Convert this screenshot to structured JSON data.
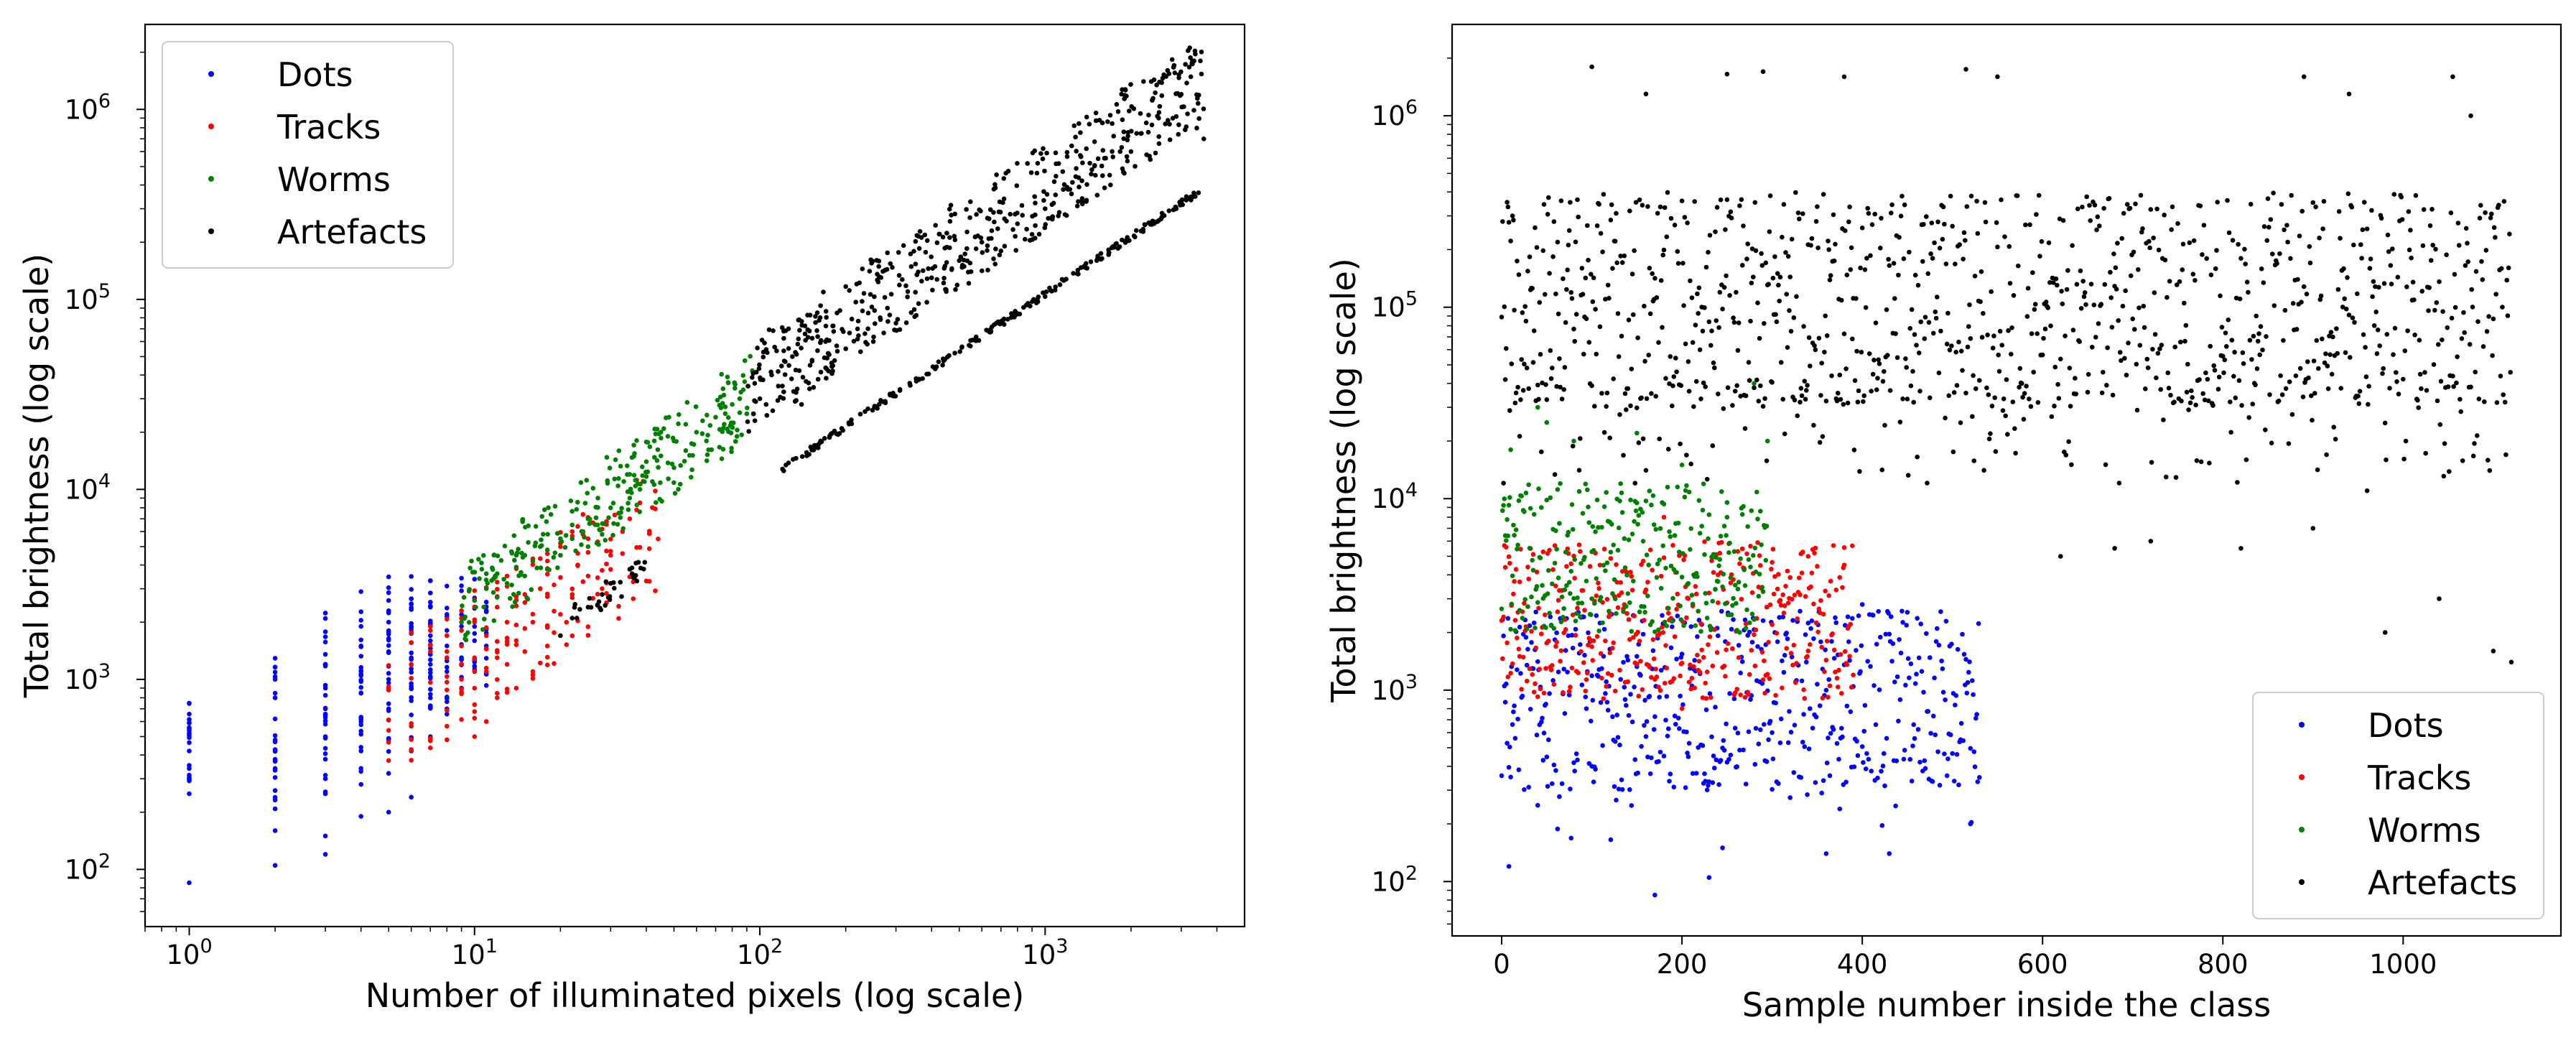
{
  "chart_data": [
    {
      "type": "scatter",
      "title": "",
      "xlabel": "Number of illuminated pixels (log scale)",
      "ylabel": "Total brightness (log scale)",
      "xscale": "log",
      "yscale": "log",
      "xlim": [
        0.7,
        5000
      ],
      "ylim": [
        50,
        2800000
      ],
      "xticks": [
        {
          "value": 1,
          "base": "10",
          "exp": "0"
        },
        {
          "value": 10,
          "base": "10",
          "exp": "1"
        },
        {
          "value": 100,
          "base": "10",
          "exp": "2"
        },
        {
          "value": 1000,
          "base": "10",
          "exp": "3"
        }
      ],
      "yticks": [
        {
          "value": 100,
          "base": "10",
          "exp": "2"
        },
        {
          "value": 1000,
          "base": "10",
          "exp": "3"
        },
        {
          "value": 10000,
          "base": "10",
          "exp": "4"
        },
        {
          "value": 100000,
          "base": "10",
          "exp": "5"
        },
        {
          "value": 1000000,
          "base": "10",
          "exp": "6"
        }
      ],
      "legend_position": "upper-left",
      "series": [
        {
          "name": "Dots",
          "color": "#0000ff",
          "points": [
            [
              1,
              85
            ],
            [
              1,
              250
            ],
            [
              1,
              300
            ],
            [
              1,
              420
            ],
            [
              1,
              550
            ],
            [
              1,
              750
            ],
            [
              2,
              105
            ],
            [
              2,
              160
            ],
            [
              2,
              260
            ],
            [
              2,
              340
            ],
            [
              2,
              480
            ],
            [
              2,
              620
            ],
            [
              2,
              800
            ],
            [
              2,
              1000
            ],
            [
              3,
              120
            ],
            [
              3,
              150
            ],
            [
              3,
              250
            ],
            [
              3,
              380
            ],
            [
              3,
              500
            ],
            [
              3,
              700
            ],
            [
              3,
              900
            ],
            [
              3,
              1200
            ],
            [
              4,
              190
            ],
            [
              4,
              280
            ],
            [
              4,
              420
            ],
            [
              4,
              600
            ],
            [
              4,
              850
            ],
            [
              4,
              1100
            ],
            [
              4,
              1500
            ],
            [
              4,
              1900
            ],
            [
              5,
              200
            ],
            [
              5,
              320
            ],
            [
              5,
              480
            ],
            [
              5,
              700
            ],
            [
              5,
              1000
            ],
            [
              5,
              1400
            ],
            [
              5,
              2000
            ],
            [
              6,
              240
            ],
            [
              6,
              420
            ],
            [
              6,
              650
            ],
            [
              6,
              950
            ],
            [
              6,
              1300
            ],
            [
              6,
              1900
            ],
            [
              6,
              2500
            ],
            [
              7,
              500
            ],
            [
              7,
              800
            ],
            [
              7,
              1200
            ],
            [
              7,
              1700
            ],
            [
              7,
              2400
            ],
            [
              7,
              3300
            ],
            [
              8,
              700
            ],
            [
              8,
              1100
            ],
            [
              8,
              1500
            ],
            [
              8,
              2200
            ],
            [
              8,
              3100
            ],
            [
              9,
              900
            ],
            [
              9,
              1300
            ],
            [
              9,
              1900
            ],
            [
              10,
              1100
            ],
            [
              10,
              1600
            ],
            [
              11,
              1500
            ]
          ]
        },
        {
          "name": "Tracks",
          "color": "#ff0000",
          "points": [
            [
              5,
              900
            ],
            [
              6,
              1200
            ],
            [
              7,
              1400
            ],
            [
              7,
              1900
            ],
            [
              8,
              1300
            ],
            [
              8,
              1700
            ],
            [
              9,
              1000
            ],
            [
              9,
              1500
            ],
            [
              9,
              2300
            ],
            [
              10,
              500
            ],
            [
              10,
              900
            ],
            [
              10,
              1300
            ],
            [
              10,
              2000
            ],
            [
              11,
              600
            ],
            [
              11,
              1100
            ],
            [
              11,
              1700
            ],
            [
              12,
              800
            ],
            [
              12,
              1300
            ],
            [
              12,
              2400
            ],
            [
              13,
              1200
            ],
            [
              13,
              2000
            ],
            [
              13,
              3500
            ],
            [
              14,
              900
            ],
            [
              14,
              1600
            ],
            [
              15,
              1400
            ],
            [
              15,
              2800
            ],
            [
              16,
              1100
            ],
            [
              16,
              2000
            ],
            [
              17,
              3000
            ],
            [
              18,
              1500
            ],
            [
              18,
              4200
            ],
            [
              20,
              2200
            ],
            [
              20,
              5000
            ],
            [
              22,
              2800
            ],
            [
              23,
              4000
            ],
            [
              25,
              3500
            ],
            [
              25,
              5500
            ],
            [
              28,
              3000
            ],
            [
              30,
              4500
            ],
            [
              33,
              6000
            ],
            [
              35,
              7000
            ]
          ]
        },
        {
          "name": "Worms",
          "color": "#008000",
          "points": [
            [
              9,
              2000
            ],
            [
              10,
              2600
            ],
            [
              11,
              3000
            ],
            [
              11,
              3600
            ],
            [
              12,
              2700
            ],
            [
              12,
              3600
            ],
            [
              13,
              3200
            ],
            [
              14,
              3900
            ],
            [
              14,
              4500
            ],
            [
              15,
              3500
            ],
            [
              15,
              4500
            ],
            [
              16,
              4200
            ],
            [
              17,
              5000
            ],
            [
              18,
              3800
            ],
            [
              18,
              4800
            ],
            [
              20,
              4500
            ],
            [
              20,
              5500
            ],
            [
              22,
              5500
            ],
            [
              22,
              6500
            ],
            [
              24,
              6000
            ],
            [
              25,
              5000
            ],
            [
              25,
              7000
            ],
            [
              27,
              6500
            ],
            [
              28,
              5800
            ],
            [
              30,
              8000
            ],
            [
              32,
              7500
            ],
            [
              35,
              9000
            ],
            [
              35,
              12000
            ],
            [
              38,
              10000
            ],
            [
              40,
              14000
            ],
            [
              42,
              11000
            ],
            [
              45,
              15000
            ],
            [
              45,
              20000
            ],
            [
              50,
              13000
            ],
            [
              50,
              18000
            ],
            [
              55,
              16000
            ],
            [
              55,
              22000
            ],
            [
              60,
              20000
            ],
            [
              65,
              18000
            ],
            [
              70,
              24000
            ],
            [
              75,
              22000
            ],
            [
              80,
              28000
            ],
            [
              85,
              30000
            ],
            [
              90,
              25000
            ]
          ]
        },
        {
          "name": "Artefacts",
          "color": "#000000",
          "points": [
            [
              20,
              1700
            ],
            [
              22,
              2100
            ],
            [
              25,
              2400
            ],
            [
              28,
              2800
            ],
            [
              30,
              3200
            ],
            [
              35,
              3800
            ],
            [
              95,
              25000
            ],
            [
              100,
              30000
            ],
            [
              110,
              40000
            ],
            [
              120,
              35000
            ],
            [
              130,
              50000
            ],
            [
              140,
              28000
            ],
            [
              150,
              45000
            ],
            [
              160,
              38000
            ],
            [
              170,
              60000
            ],
            [
              180,
              42000
            ],
            [
              200,
              55000
            ],
            [
              220,
              70000
            ],
            [
              250,
              60000
            ],
            [
              280,
              90000
            ],
            [
              300,
              75000
            ],
            [
              330,
              110000
            ],
            [
              360,
              95000
            ],
            [
              400,
              130000
            ],
            [
              450,
              110000
            ],
            [
              500,
              160000
            ],
            [
              550,
              140000
            ],
            [
              600,
              200000
            ],
            [
              700,
              180000
            ],
            [
              800,
              250000
            ],
            [
              900,
              220000
            ],
            [
              1000,
              300000
            ],
            [
              1200,
              380000
            ],
            [
              1500,
              450000
            ],
            [
              2000,
              600000
            ],
            [
              2500,
              900000
            ],
            [
              3000,
              1200000
            ],
            [
              3500,
              1800000
            ],
            [
              3600,
              700000
            ]
          ]
        }
      ],
      "artefacts_linear_band": {
        "x_start": 120,
        "x_end": 3500,
        "brightness_per_pixel": 107
      }
    },
    {
      "type": "scatter",
      "title": "",
      "xlabel": "Sample number inside the class",
      "ylabel": "Total brightness (log scale)",
      "xscale": "linear",
      "yscale": "log",
      "xlim": [
        -55,
        1175
      ],
      "ylim": [
        52,
        3000000
      ],
      "xticks": [
        {
          "value": 0,
          "label": "0"
        },
        {
          "value": 200,
          "label": "200"
        },
        {
          "value": 400,
          "label": "400"
        },
        {
          "value": 600,
          "label": "600"
        },
        {
          "value": 800,
          "label": "800"
        },
        {
          "value": 1000,
          "label": "1000"
        }
      ],
      "yticks": [
        {
          "value": 100,
          "base": "10",
          "exp": "2"
        },
        {
          "value": 1000,
          "base": "10",
          "exp": "3"
        },
        {
          "value": 10000,
          "base": "10",
          "exp": "4"
        },
        {
          "value": 100000,
          "base": "10",
          "exp": "5"
        },
        {
          "value": 1000000,
          "base": "10",
          "exp": "6"
        }
      ],
      "legend_position": "lower-right",
      "series": [
        {
          "name": "Dots",
          "color": "#0000ff",
          "sample_count": 530,
          "typical_range": [
            300,
            2600
          ],
          "points": [
            [
              8,
              120
            ],
            [
              40,
              250
            ],
            [
              100,
              400
            ],
            [
              170,
              85
            ],
            [
              230,
              105
            ],
            [
              245,
              150
            ],
            [
              360,
              140
            ],
            [
              430,
              140
            ],
            [
              520,
              200
            ],
            [
              530,
              350
            ],
            [
              300,
              600
            ],
            [
              150,
              1500
            ],
            [
              400,
              2800
            ]
          ]
        },
        {
          "name": "Tracks",
          "color": "#ff0000",
          "sample_count": 390,
          "typical_range": [
            900,
            6000
          ],
          "points": [
            [
              20,
              1500
            ],
            [
              60,
              3500
            ],
            [
              120,
              2500
            ],
            [
              180,
              8000
            ],
            [
              240,
              4000
            ],
            [
              300,
              2200
            ],
            [
              340,
              5000
            ],
            [
              380,
              4500
            ],
            [
              390,
              1200
            ],
            [
              200,
              800
            ]
          ]
        },
        {
          "name": "Worms",
          "color": "#008000",
          "sample_count": 295,
          "typical_range": [
            2000,
            12000
          ],
          "points": [
            [
              10,
              18000
            ],
            [
              40,
              30000
            ],
            [
              50,
              25000
            ],
            [
              80,
              20000
            ],
            [
              150,
              22000
            ],
            [
              200,
              15000
            ],
            [
              250,
              8000
            ],
            [
              280,
              40000
            ],
            [
              295,
              20000
            ],
            [
              100,
              3000
            ]
          ]
        },
        {
          "name": "Artefacts",
          "color": "#000000",
          "sample_count": 1120,
          "typical_range": [
            30000,
            400000
          ],
          "points": [
            [
              100,
              1800000
            ],
            [
              160,
              1300000
            ],
            [
              250,
              1650000
            ],
            [
              290,
              1700000
            ],
            [
              380,
              1600000
            ],
            [
              515,
              1750000
            ],
            [
              550,
              1600000
            ],
            [
              890,
              1600000
            ],
            [
              940,
              1300000
            ],
            [
              1055,
              1600000
            ],
            [
              1075,
              1000000
            ],
            [
              620,
              5000
            ],
            [
              680,
              5500
            ],
            [
              720,
              6000
            ],
            [
              820,
              5500
            ],
            [
              960,
              11000
            ],
            [
              980,
              2000
            ],
            [
              1100,
              1600
            ],
            [
              1120,
              1400
            ],
            [
              900,
              7000
            ],
            [
              1040,
              3000
            ]
          ]
        }
      ]
    }
  ]
}
